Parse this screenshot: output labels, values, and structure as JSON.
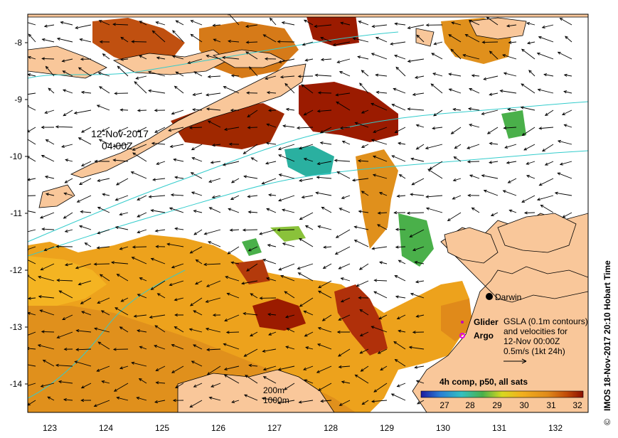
{
  "map": {
    "y_axis_labels": [
      "-8",
      "-9",
      "-10",
      "-11",
      "-12",
      "-13",
      "-14"
    ],
    "x_axis_labels": [
      "123",
      "124",
      "125",
      "126",
      "127",
      "128",
      "129",
      "130",
      "131",
      "132"
    ],
    "credit": "IMOS 18-Nov-2017 20:10 Hobart Time",
    "copyright_symbol": "©",
    "timestamp_line1": "12-Nov-2017",
    "timestamp_line2": "04:00Z",
    "place_darwin": "Darwin",
    "legend_glider": "Glider",
    "legend_argo": "Argo",
    "gsla_line1": "GSLA (0.1m contours)",
    "gsla_line2": "and velocities for",
    "gsla_line3": "12-Nov 00:00Z",
    "gsla_line4": "0.5m/s (1kt 24h)",
    "contour_200": "200m",
    "contour_1000": "1000m",
    "colorbar_title": "4h comp, p50, all sats",
    "colorbar_ticks": [
      "27",
      "28",
      "29",
      "30",
      "31",
      "32"
    ],
    "colors": {
      "land": "#f9c79a",
      "contour": "#33cccc",
      "sst_hot": "#9b1b00",
      "sst_warm": "#e08a1a",
      "sst_mid": "#f2b01e",
      "sst_cool": "#4ab04a",
      "sst_cold": "#2a7fd4"
    }
  }
}
